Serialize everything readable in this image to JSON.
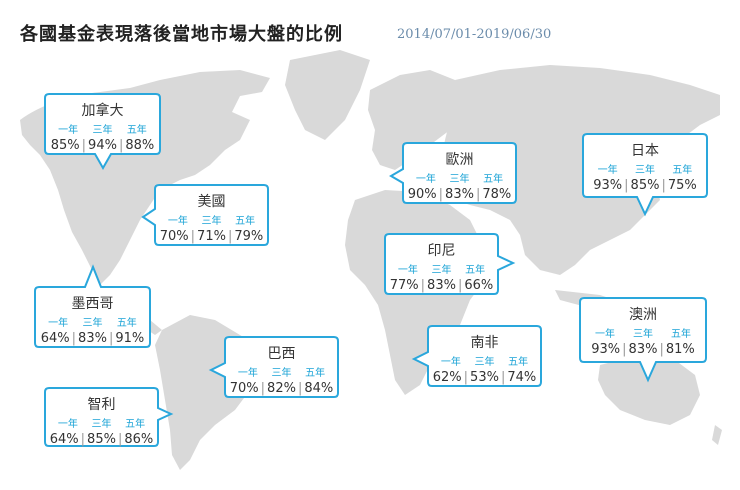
{
  "header": {
    "title": "各國基金表現落後當地市場大盤的比例",
    "date_range": "2014/07/01-2019/06/30"
  },
  "colors": {
    "border": "#2aa7dc",
    "land": "#d9d9d9",
    "period_text": "#1aa3d6"
  },
  "callouts": [
    {
      "id": "canada",
      "name": "加拿大",
      "periods": [
        "一年",
        "三年",
        "五年"
      ],
      "values": [
        "85%",
        "94%",
        "88%"
      ]
    },
    {
      "id": "usa",
      "name": "美國",
      "periods": [
        "一年",
        "三年",
        "五年"
      ],
      "values": [
        "70%",
        "71%",
        "79%"
      ]
    },
    {
      "id": "mexico",
      "name": "墨西哥",
      "periods": [
        "一年",
        "三年",
        "五年"
      ],
      "values": [
        "64%",
        "83%",
        "91%"
      ]
    },
    {
      "id": "brazil",
      "name": "巴西",
      "periods": [
        "一年",
        "三年",
        "五年"
      ],
      "values": [
        "70%",
        "82%",
        "84%"
      ]
    },
    {
      "id": "chile",
      "name": "智利",
      "periods": [
        "一年",
        "三年",
        "五年"
      ],
      "values": [
        "64%",
        "85%",
        "86%"
      ]
    },
    {
      "id": "europe",
      "name": "歐洲",
      "periods": [
        "一年",
        "三年",
        "五年"
      ],
      "values": [
        "90%",
        "83%",
        "78%"
      ]
    },
    {
      "id": "india",
      "name": "印尼",
      "periods": [
        "一年",
        "三年",
        "五年"
      ],
      "values": [
        "77%",
        "83%",
        "66%"
      ]
    },
    {
      "id": "south-africa",
      "name": "南非",
      "periods": [
        "一年",
        "三年",
        "五年"
      ],
      "values": [
        "62%",
        "53%",
        "74%"
      ]
    },
    {
      "id": "japan",
      "name": "日本",
      "periods": [
        "一年",
        "三年",
        "五年"
      ],
      "values": [
        "93%",
        "85%",
        "75%"
      ]
    },
    {
      "id": "australia",
      "name": "澳洲",
      "periods": [
        "一年",
        "三年",
        "五年"
      ],
      "values": [
        "93%",
        "83%",
        "81%"
      ]
    }
  ]
}
